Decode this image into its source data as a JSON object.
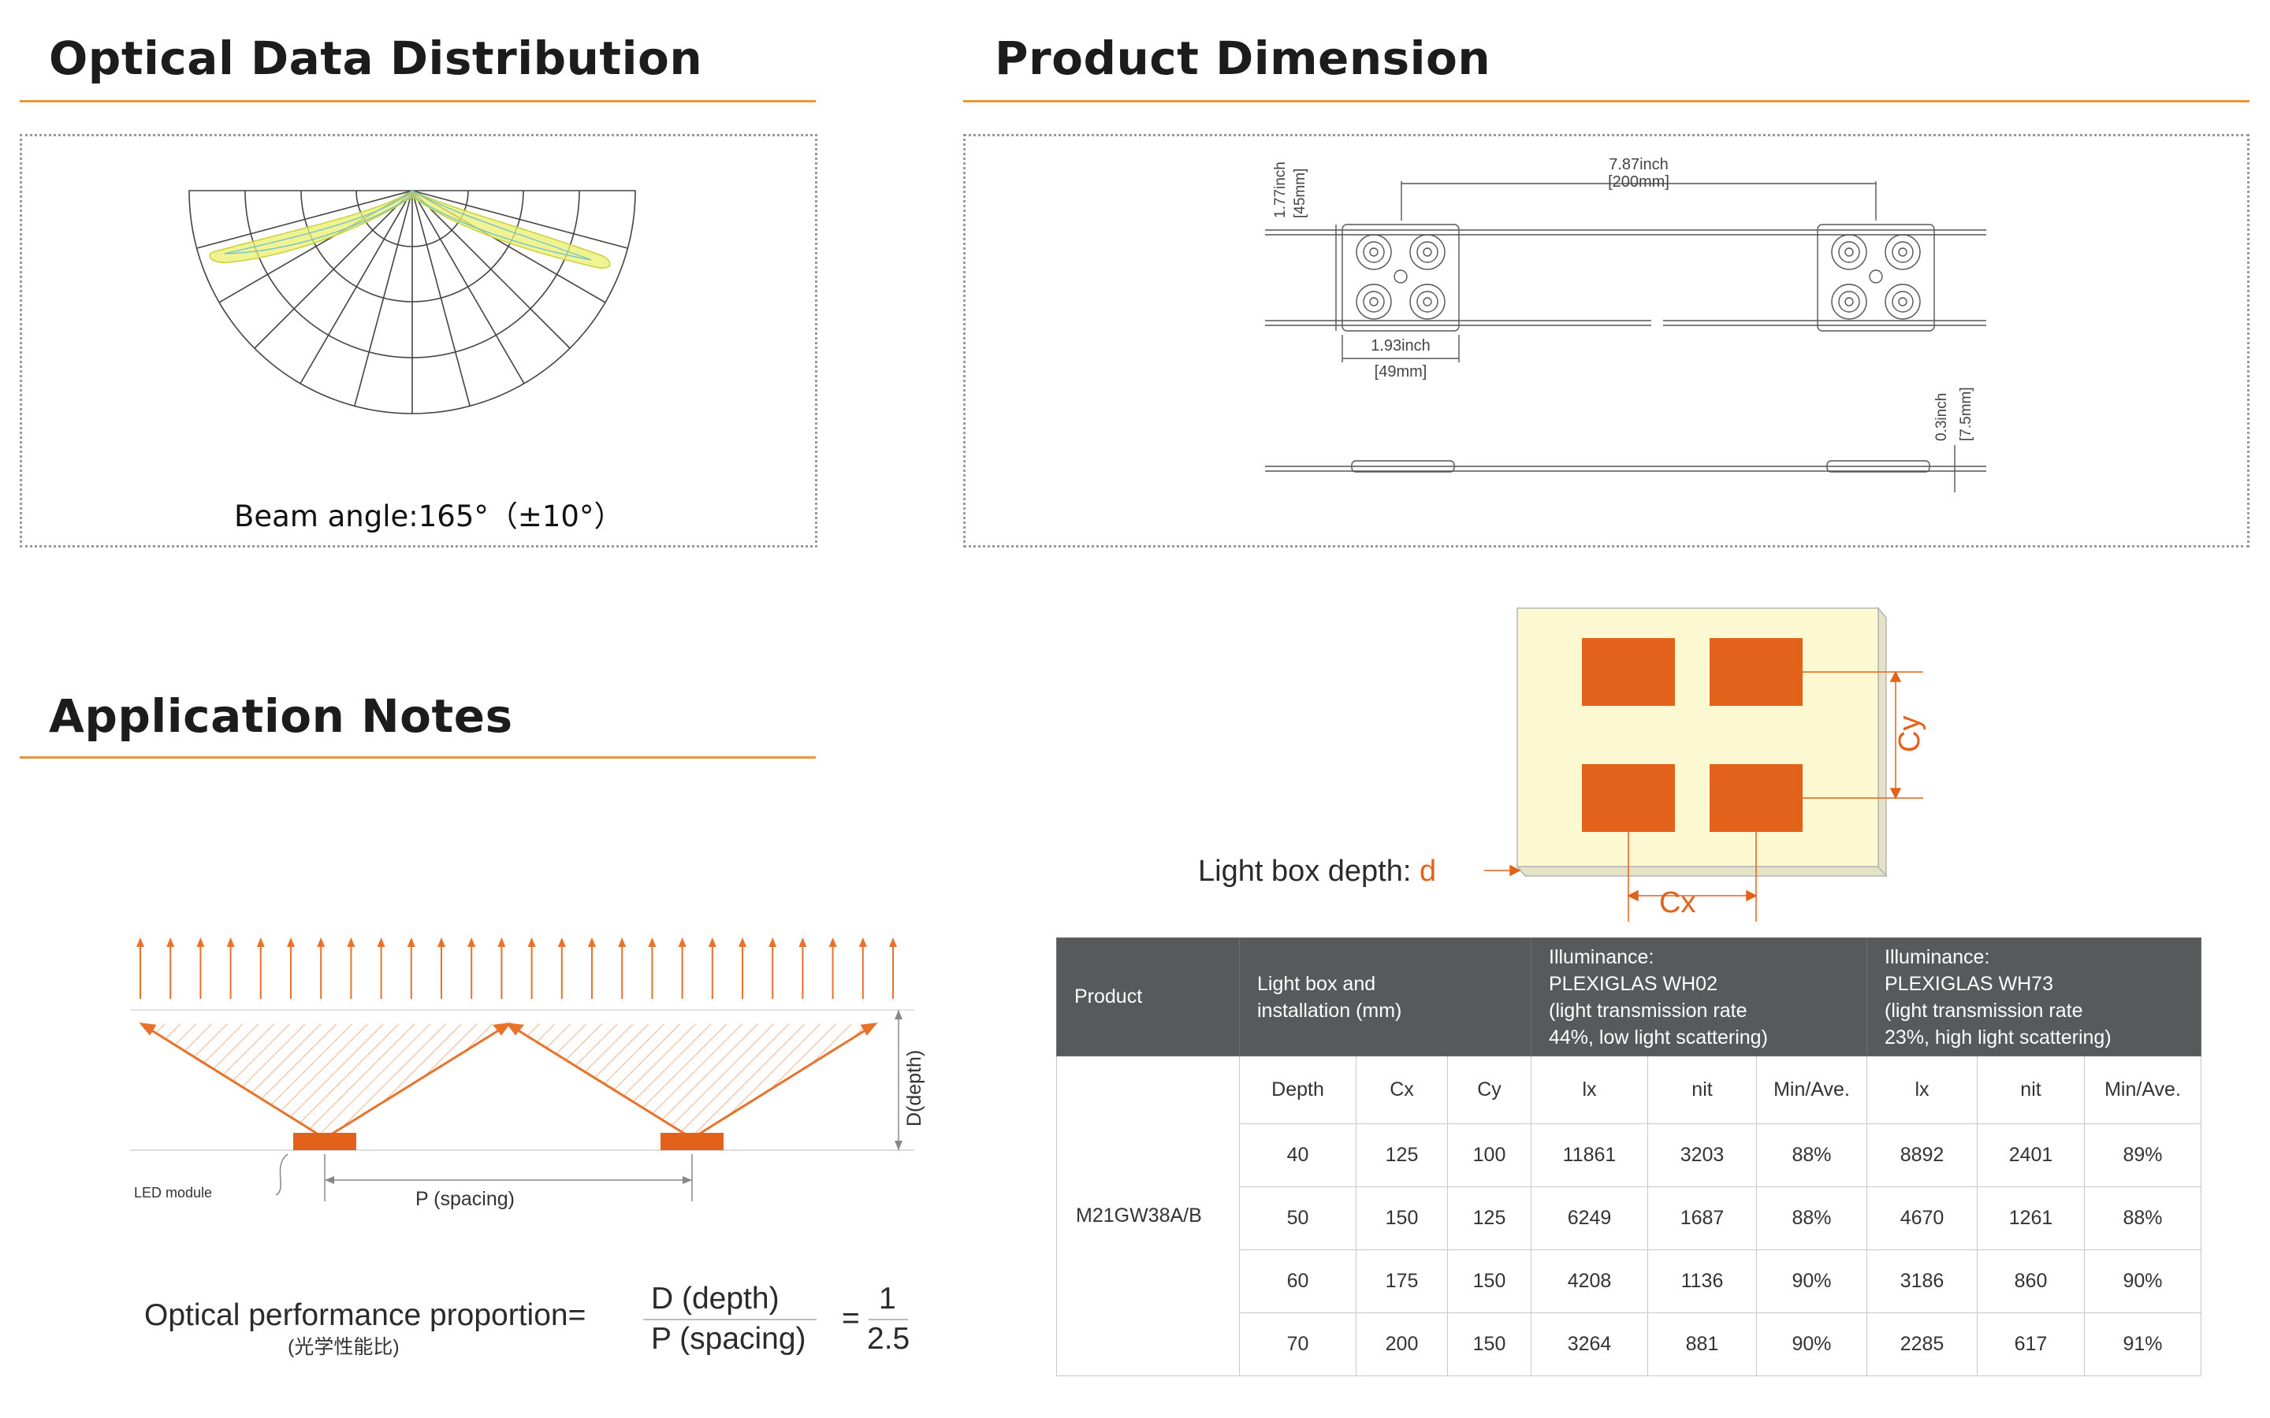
{
  "sections": {
    "optical_title": "Optical Data Distribution",
    "dimension_title": "Product Dimension",
    "application_title": "Application Notes"
  },
  "optical": {
    "beam_angle": "Beam angle:165°（±10°）"
  },
  "dimension": {
    "spacing_inch": "7.87inch",
    "spacing_mm": "[200mm]",
    "width_inch": "1.93inch",
    "width_mm": "[49mm]",
    "height_inch": "1.77inch",
    "height_mm": "[45mm]",
    "thick_inch": "0.3inch",
    "thick_mm": "[7.5mm]"
  },
  "lightbox": {
    "depth_label": "Light box depth: ",
    "depth_symbol": "d",
    "cx": "Cx",
    "cy": "Cy",
    "box_color": "#fbf8d2",
    "led_color": "#e2621b"
  },
  "application": {
    "led_module": "LED module",
    "spacing": "P (spacing)",
    "depth": "D(depth)",
    "formula_label": "Optical performance proportion=",
    "formula_label_cn": "(光学性能比)",
    "numerator": "D (depth)",
    "denominator": "P (spacing)",
    "equals": "=",
    "ratio_num": "1",
    "ratio_den": "2.5",
    "accent": "#e8722c"
  },
  "table": {
    "h_product": "Product",
    "h_install": "Light box and\ninstallation (mm)",
    "h_wh02": "Illuminance:\nPLEXIGLAS WH02\n(light transmission rate\n44%, low light scattering)",
    "h_wh73": "Illuminance:\nPLEXIGLAS WH73\n(light transmission rate\n23%, high light scattering)",
    "sub": [
      "Depth",
      "Cx",
      "Cy",
      "lx",
      "nit",
      "Min/Ave.",
      "lx",
      "nit",
      "Min/Ave."
    ],
    "product": "M21GW38A/B",
    "rows": [
      [
        "40",
        "125",
        "100",
        "11861",
        "3203",
        "88%",
        "8892",
        "2401",
        "89%"
      ],
      [
        "50",
        "150",
        "125",
        "6249",
        "1687",
        "88%",
        "4670",
        "1261",
        "88%"
      ],
      [
        "60",
        "175",
        "150",
        "4208",
        "1136",
        "90%",
        "3186",
        "860",
        "90%"
      ],
      [
        "70",
        "200",
        "150",
        "3264",
        "881",
        "90%",
        "2285",
        "617",
        "91%"
      ]
    ],
    "header_color": "#58595b"
  }
}
